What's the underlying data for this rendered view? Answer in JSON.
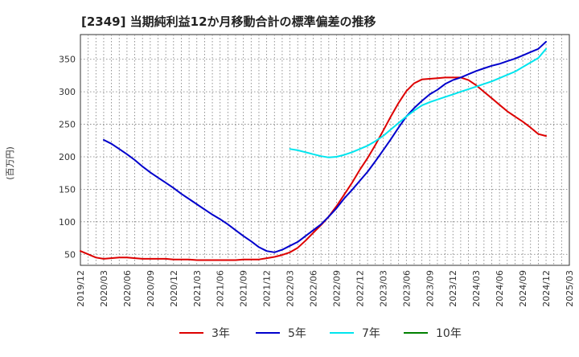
{
  "chart_data": {
    "type": "line",
    "title": "[2349]  当期純利益12か月移動合計の標準偏差の推移",
    "ylabel": "(百万円)",
    "xlabel": "",
    "ylim": [
      33,
      388
    ],
    "yticks": [
      50,
      100,
      150,
      200,
      250,
      300,
      350
    ],
    "x_labels": [
      "2019/12",
      "2020/03",
      "2020/06",
      "2020/09",
      "2020/12",
      "2021/03",
      "2021/06",
      "2021/09",
      "2021/12",
      "2022/03",
      "2022/06",
      "2022/09",
      "2022/12",
      "2023/03",
      "2023/06",
      "2023/09",
      "2023/12",
      "2024/03",
      "2024/06",
      "2024/09",
      "2024/12",
      "2025/03"
    ],
    "grid": true,
    "legend_position": "bottom",
    "series": [
      {
        "name": "3年",
        "color": "#dd0000",
        "x": [
          "2019/12",
          "2020/02",
          "2020/03",
          "2020/05",
          "2020/06",
          "2020/08",
          "2020/09",
          "2020/11",
          "2020/12",
          "2021/02",
          "2021/03",
          "2021/05",
          "2021/06",
          "2021/08",
          "2021/09",
          "2021/11",
          "2021/12",
          "2022/01",
          "2022/02",
          "2022/03",
          "2022/04",
          "2022/05",
          "2022/06",
          "2022/07",
          "2022/08",
          "2022/09",
          "2022/10",
          "2022/11",
          "2022/12",
          "2023/01",
          "2023/02",
          "2023/03",
          "2023/04",
          "2023/05",
          "2023/06",
          "2023/07",
          "2023/08",
          "2023/09",
          "2023/10",
          "2023/11",
          "2023/12",
          "2024/01",
          "2024/02",
          "2024/03",
          "2024/04",
          "2024/05",
          "2024/06",
          "2024/07",
          "2024/08",
          "2024/09",
          "2024/10",
          "2024/11",
          "2024/12"
        ],
        "values": [
          55,
          45,
          43,
          45,
          45,
          43,
          43,
          43,
          42,
          42,
          41,
          41,
          41,
          41,
          42,
          42,
          44,
          46,
          49,
          53,
          60,
          71,
          83,
          95,
          108,
          124,
          142,
          160,
          180,
          198,
          218,
          240,
          262,
          283,
          301,
          313,
          319,
          320,
          321,
          322,
          322,
          322,
          318,
          310,
          300,
          290,
          280,
          270,
          262,
          254,
          245,
          235,
          232
        ]
      },
      {
        "name": "5年",
        "color": "#0000cc",
        "x": [
          "2020/03",
          "2020/04",
          "2020/05",
          "2020/06",
          "2020/07",
          "2020/08",
          "2020/09",
          "2020/10",
          "2020/11",
          "2020/12",
          "2021/01",
          "2021/02",
          "2021/03",
          "2021/04",
          "2021/05",
          "2021/06",
          "2021/07",
          "2021/08",
          "2021/09",
          "2021/10",
          "2021/11",
          "2021/12",
          "2022/01",
          "2022/02",
          "2022/03",
          "2022/04",
          "2022/05",
          "2022/06",
          "2022/07",
          "2022/08",
          "2022/09",
          "2022/10",
          "2022/11",
          "2022/12",
          "2023/01",
          "2023/02",
          "2023/03",
          "2023/04",
          "2023/05",
          "2023/06",
          "2023/07",
          "2023/08",
          "2023/09",
          "2023/10",
          "2023/11",
          "2023/12",
          "2024/01",
          "2024/02",
          "2024/03",
          "2024/04",
          "2024/05",
          "2024/06",
          "2024/07",
          "2024/08",
          "2024/09",
          "2024/10",
          "2024/11",
          "2024/12"
        ],
        "values": [
          226,
          220,
          212,
          204,
          195,
          185,
          176,
          168,
          160,
          152,
          143,
          135,
          127,
          119,
          111,
          104,
          96,
          87,
          78,
          70,
          61,
          55,
          53,
          57,
          63,
          69,
          78,
          87,
          96,
          108,
          121,
          136,
          149,
          163,
          177,
          193,
          210,
          227,
          245,
          262,
          275,
          286,
          296,
          303,
          312,
          318,
          322,
          327,
          332,
          336,
          340,
          343,
          347,
          351,
          356,
          361,
          366,
          377
        ]
      },
      {
        "name": "7年",
        "color": "#00e5ee",
        "x": [
          "2022/03",
          "2022/04",
          "2022/05",
          "2022/06",
          "2022/07",
          "2022/08",
          "2022/09",
          "2022/10",
          "2022/11",
          "2022/12",
          "2023/01",
          "2023/02",
          "2023/03",
          "2023/04",
          "2023/05",
          "2023/06",
          "2023/07",
          "2023/08",
          "2023/09",
          "2023/10",
          "2023/11",
          "2023/12",
          "2024/01",
          "2024/02",
          "2024/03",
          "2024/04",
          "2024/05",
          "2024/06",
          "2024/07",
          "2024/08",
          "2024/09",
          "2024/10",
          "2024/11",
          "2024/12"
        ],
        "values": [
          212,
          210,
          207,
          204,
          201,
          199,
          200,
          203,
          207,
          212,
          217,
          224,
          232,
          242,
          252,
          262,
          271,
          279,
          284,
          288,
          292,
          296,
          300,
          304,
          308,
          312,
          316,
          321,
          326,
          331,
          338,
          345,
          352,
          366
        ]
      },
      {
        "name": "10年",
        "color": "#008000",
        "x": [],
        "values": []
      }
    ]
  }
}
